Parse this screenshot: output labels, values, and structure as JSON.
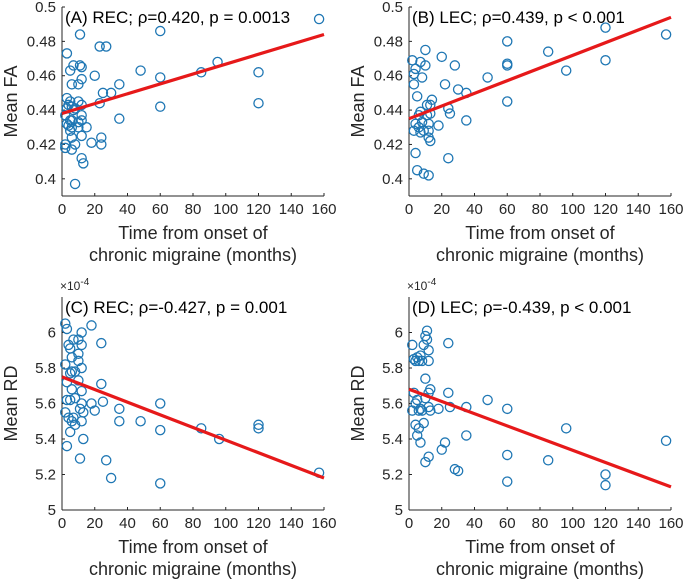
{
  "colors": {
    "point": "#1f77b4",
    "line": "#e6191a",
    "axis": "#262626"
  },
  "chart_data": [
    {
      "type": "scatter",
      "title": "(A) REC; ρ=0.420, p = 0.0013",
      "xlabel": [
        "Time from onset of",
        "chronic migraine (months)"
      ],
      "ylabel": "Mean FA",
      "xlim": [
        0,
        160
      ],
      "ylim": [
        0.39,
        0.5
      ],
      "xticks": [
        0,
        20,
        40,
        60,
        80,
        100,
        120,
        140,
        160
      ],
      "yticks": [
        0.4,
        0.42,
        0.44,
        0.46,
        0.48,
        0.5
      ],
      "ytick_labels": [
        "0.4",
        "0.42",
        "0.44",
        "0.46",
        "0.48",
        "0.5"
      ],
      "exponent_label": "",
      "fit": {
        "x": [
          0,
          160
        ],
        "y": [
          0.438,
          0.484
        ]
      },
      "x": [
        2,
        2,
        2,
        3,
        3,
        3,
        3,
        4,
        4,
        5,
        5,
        5,
        5,
        6,
        6,
        6,
        6,
        6,
        6,
        7,
        7,
        8,
        8,
        8,
        10,
        10,
        10,
        10,
        11,
        11,
        12,
        12,
        12,
        12,
        12,
        12,
        12,
        13,
        15,
        18,
        20,
        23,
        23,
        24,
        24,
        25,
        27,
        30,
        35,
        35,
        48,
        60,
        60,
        60,
        85,
        95,
        120,
        120,
        157
      ],
      "y": [
        0.437,
        0.42,
        0.418,
        0.473,
        0.447,
        0.441,
        0.432,
        0.443,
        0.431,
        0.463,
        0.445,
        0.434,
        0.428,
        0.455,
        0.442,
        0.434,
        0.43,
        0.424,
        0.417,
        0.466,
        0.44,
        0.397,
        0.42,
        0.441,
        0.43,
        0.455,
        0.445,
        0.433,
        0.484,
        0.466,
        0.465,
        0.458,
        0.443,
        0.437,
        0.434,
        0.425,
        0.412,
        0.409,
        0.43,
        0.421,
        0.46,
        0.477,
        0.444,
        0.424,
        0.42,
        0.45,
        0.477,
        0.45,
        0.455,
        0.435,
        0.463,
        0.486,
        0.459,
        0.442,
        0.462,
        0.468,
        0.462,
        0.444,
        0.493
      ]
    },
    {
      "type": "scatter",
      "title": "(B) LEC; ρ=0.439, p < 0.001",
      "xlabel": [
        "Time from onset of",
        "chronic migraine (months)"
      ],
      "ylabel": "Mean FA",
      "xlim": [
        0,
        160
      ],
      "ylim": [
        0.39,
        0.5
      ],
      "xticks": [
        0,
        20,
        40,
        60,
        80,
        100,
        120,
        140,
        160
      ],
      "yticks": [
        0.4,
        0.42,
        0.44,
        0.46,
        0.48,
        0.5
      ],
      "ytick_labels": [
        "0.4",
        "0.42",
        "0.44",
        "0.46",
        "0.48",
        "0.5"
      ],
      "exponent_label": "",
      "fit": {
        "x": [
          0,
          160
        ],
        "y": [
          0.435,
          0.494
        ]
      },
      "x": [
        2,
        3,
        3,
        3,
        4,
        4,
        4,
        5,
        5,
        6,
        6,
        7,
        7,
        7,
        8,
        8,
        9,
        9,
        10,
        10,
        11,
        11,
        12,
        12,
        12,
        12,
        13,
        13,
        13,
        14,
        18,
        20,
        22,
        24,
        24,
        25,
        28,
        30,
        35,
        35,
        48,
        60,
        60,
        60,
        60,
        85,
        96,
        120,
        120,
        157
      ],
      "y": [
        0.469,
        0.461,
        0.455,
        0.428,
        0.464,
        0.432,
        0.415,
        0.448,
        0.405,
        0.437,
        0.43,
        0.468,
        0.439,
        0.427,
        0.459,
        0.433,
        0.403,
        0.428,
        0.475,
        0.466,
        0.443,
        0.437,
        0.432,
        0.428,
        0.424,
        0.402,
        0.443,
        0.438,
        0.422,
        0.446,
        0.431,
        0.471,
        0.455,
        0.441,
        0.412,
        0.438,
        0.466,
        0.452,
        0.45,
        0.434,
        0.459,
        0.48,
        0.467,
        0.445,
        0.466,
        0.474,
        0.463,
        0.488,
        0.469,
        0.484
      ]
    },
    {
      "type": "scatter",
      "title": "(C) REC; ρ=-0.427, p = 0.001",
      "xlabel": [
        "Time from onset of",
        "chronic migraine (months)"
      ],
      "ylabel": "Mean RD",
      "xlim": [
        0,
        160
      ],
      "ylim": [
        5,
        6.2
      ],
      "xticks": [
        0,
        20,
        40,
        60,
        80,
        100,
        120,
        140,
        160
      ],
      "yticks": [
        5,
        5.2,
        5.4,
        5.6,
        5.8,
        6
      ],
      "ytick_labels": [
        "5",
        "5.2",
        "5.4",
        "5.6",
        "5.8",
        "6"
      ],
      "exponent_label": "×10",
      "exponent_power": "-4",
      "fit": {
        "x": [
          0,
          160
        ],
        "y": [
          5.75,
          5.18
        ]
      },
      "x": [
        2,
        2,
        2,
        3,
        3,
        3,
        3,
        4,
        4,
        5,
        5,
        5,
        5,
        6,
        6,
        6,
        6,
        7,
        7,
        8,
        8,
        8,
        10,
        10,
        10,
        10,
        11,
        11,
        12,
        12,
        12,
        12,
        12,
        12,
        13,
        13,
        18,
        18,
        20,
        24,
        24,
        25,
        27,
        30,
        35,
        35,
        48,
        60,
        60,
        60,
        85,
        96,
        120,
        120,
        157
      ],
      "y": [
        6.05,
        5.82,
        5.55,
        6.02,
        5.72,
        5.62,
        5.36,
        5.93,
        5.52,
        5.91,
        5.77,
        5.62,
        5.44,
        5.86,
        5.78,
        5.68,
        5.5,
        5.96,
        5.52,
        5.78,
        5.63,
        5.48,
        5.88,
        5.96,
        5.84,
        5.73,
        5.29,
        5.57,
        6.0,
        5.93,
        5.8,
        5.67,
        5.6,
        5.5,
        5.4,
        5.55,
        6.04,
        5.6,
        5.56,
        5.94,
        5.71,
        5.61,
        5.28,
        5.18,
        5.57,
        5.5,
        5.5,
        5.6,
        5.45,
        5.15,
        5.46,
        5.4,
        5.48,
        5.46,
        5.21
      ]
    },
    {
      "type": "scatter",
      "title": "(D) LEC; ρ=-0.439, p < 0.001",
      "xlabel": [
        "Time from onset of",
        "chronic migraine (months)"
      ],
      "ylabel": "Mean RD",
      "xlim": [
        0,
        160
      ],
      "ylim": [
        5,
        6.2
      ],
      "xticks": [
        0,
        20,
        40,
        60,
        80,
        100,
        120,
        140,
        160
      ],
      "yticks": [
        5,
        5.2,
        5.4,
        5.6,
        5.8,
        6
      ],
      "ytick_labels": [
        "5",
        "5.2",
        "5.4",
        "5.6",
        "5.8",
        "6"
      ],
      "exponent_label": "×10",
      "exponent_power": "-4",
      "fit": {
        "x": [
          0,
          160
        ],
        "y": [
          5.68,
          5.13
        ]
      },
      "x": [
        2,
        2,
        3,
        3,
        4,
        4,
        4,
        5,
        5,
        5,
        6,
        6,
        6,
        7,
        7,
        7,
        8,
        8,
        9,
        9,
        10,
        10,
        10,
        10,
        11,
        11,
        12,
        12,
        12,
        12,
        12,
        13,
        13,
        18,
        20,
        22,
        24,
        24,
        25,
        28,
        30,
        35,
        35,
        48,
        60,
        60,
        60,
        85,
        96,
        120,
        120,
        157
      ],
      "y": [
        5.93,
        5.56,
        5.85,
        5.66,
        5.84,
        5.6,
        5.48,
        5.86,
        5.62,
        5.42,
        5.84,
        5.56,
        5.46,
        5.87,
        5.57,
        5.38,
        5.84,
        5.56,
        5.93,
        5.49,
        5.98,
        5.74,
        5.63,
        5.27,
        6.01,
        5.96,
        5.9,
        5.84,
        5.66,
        5.58,
        5.3,
        5.68,
        5.56,
        5.57,
        5.34,
        5.38,
        5.94,
        5.66,
        5.58,
        5.23,
        5.22,
        5.58,
        5.42,
        5.62,
        5.57,
        5.31,
        5.16,
        5.28,
        5.46,
        5.2,
        5.14,
        5.39
      ]
    }
  ]
}
